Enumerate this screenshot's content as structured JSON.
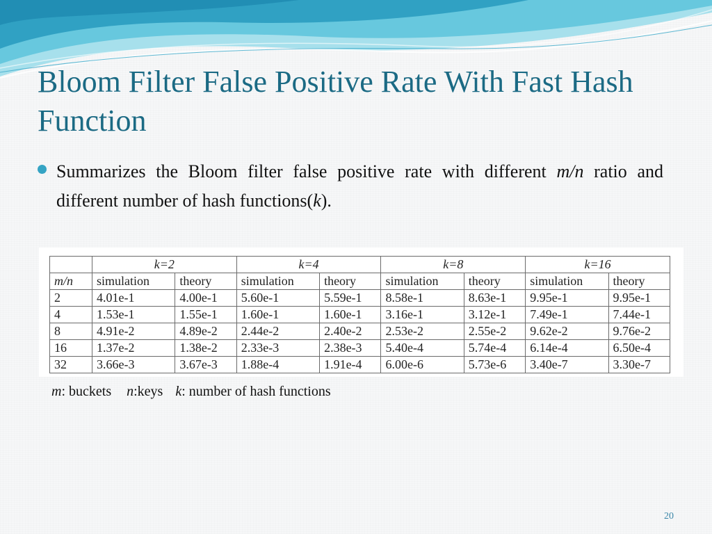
{
  "slide": {
    "title": "Bloom Filter False Positive Rate With Fast Hash Function",
    "bullet": {
      "text_before": "Summarizes the Bloom filter false positive rate with different ",
      "mn_italic": "m/n",
      "text_middle": " ratio and different number of hash functions(",
      "k_italic": "k",
      "text_after": ")."
    },
    "legend": {
      "m_var": "m",
      "m_desc": ": buckets",
      "n_var": "n",
      "n_desc": ":keys",
      "k_var": "k",
      "k_desc": ": number of hash functions"
    },
    "page_number": "20"
  },
  "table": {
    "group_headers": [
      "k=2",
      "k=4",
      "k=8",
      "k=16"
    ],
    "col_headers": [
      "m/n",
      "simulation",
      "theory",
      "simulation",
      "theory",
      "simulation",
      "theory",
      "simulation",
      "theory"
    ],
    "rows": [
      [
        "2",
        "4.01e-1",
        "4.00e-1",
        "5.60e-1",
        "5.59e-1",
        "8.58e-1",
        "8.63e-1",
        "9.95e-1",
        "9.95e-1"
      ],
      [
        "4",
        "1.53e-1",
        "1.55e-1",
        "1.60e-1",
        "1.60e-1",
        "3.16e-1",
        "3.12e-1",
        "7.49e-1",
        "7.44e-1"
      ],
      [
        "8",
        "4.91e-2",
        "4.89e-2",
        "2.44e-2",
        "2.40e-2",
        "2.53e-2",
        "2.55e-2",
        "9.62e-2",
        "9.76e-2"
      ],
      [
        "16",
        "1.37e-2",
        "1.38e-2",
        "2.33e-3",
        "2.38e-3",
        "5.40e-4",
        "5.74e-4",
        "6.14e-4",
        "6.50e-4"
      ],
      [
        "32",
        "3.66e-3",
        "3.67e-3",
        "1.88e-4",
        "1.91e-4",
        "6.00e-6",
        "5.73e-6",
        "3.40e-7",
        "3.30e-7"
      ]
    ]
  },
  "theme": {
    "title_color": "#1b6a84",
    "bullet_color": "#35a4c4",
    "wave_colors": [
      "#2a9cc0",
      "#5cc3dc",
      "#a7e0ec"
    ]
  }
}
